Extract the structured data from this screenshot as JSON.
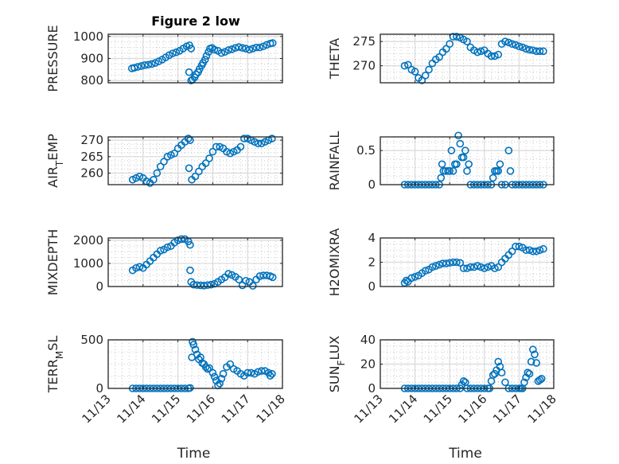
{
  "figure": {
    "title": "Figure 2 low",
    "marker_color": "#0072BD",
    "grid_color": "#d9d9d9"
  },
  "chart_data": [
    {
      "type": "scatter",
      "title": "Figure 2 low",
      "ylabel": "PRESSURE",
      "ylabel_parts": [
        "PRESSURE"
      ],
      "xlabel": "",
      "xlim": [
        0,
        5
      ],
      "ylim": [
        790,
        1010
      ],
      "yticks": [
        800,
        900,
        1000
      ],
      "xticks": [
        "11/13",
        "11/14",
        "11/15",
        "11/16",
        "11/17",
        "11/18"
      ],
      "show_xticklabels": false,
      "grid": true,
      "x": [
        0.68,
        0.75,
        0.85,
        0.95,
        1.05,
        1.15,
        1.25,
        1.35,
        1.45,
        1.55,
        1.65,
        1.75,
        1.85,
        1.95,
        2.05,
        2.15,
        2.25,
        2.33,
        2.38,
        2.32,
        2.38,
        2.42,
        2.48,
        2.52,
        2.58,
        2.62,
        2.68,
        2.72,
        2.78,
        2.82,
        2.88,
        2.92,
        2.98,
        3.05,
        3.15,
        3.25,
        3.35,
        3.45,
        3.55,
        3.65,
        3.75,
        3.85,
        3.95,
        4.05,
        4.15,
        4.25,
        4.35,
        4.45,
        4.55,
        4.65,
        4.72
      ],
      "y": [
        855,
        858,
        862,
        866,
        870,
        872,
        875,
        880,
        887,
        895,
        905,
        915,
        923,
        928,
        935,
        945,
        955,
        960,
        945,
        838,
        800,
        805,
        815,
        828,
        838,
        852,
        868,
        880,
        895,
        912,
        930,
        945,
        948,
        940,
        935,
        925,
        930,
        938,
        942,
        948,
        952,
        948,
        945,
        940,
        945,
        950,
        950,
        955,
        962,
        968,
        970
      ]
    },
    {
      "type": "scatter",
      "ylabel": "THETA",
      "xlabel": "",
      "xlim": [
        0,
        5
      ],
      "ylim": [
        266.5,
        276.5
      ],
      "yticks": [
        270,
        275
      ],
      "xticks": [
        "11/13",
        "11/14",
        "11/15",
        "11/16",
        "11/17",
        "11/18"
      ],
      "show_xticklabels": false,
      "grid": true,
      "x": [
        0.7,
        0.8,
        0.9,
        1.0,
        1.1,
        1.2,
        1.3,
        1.4,
        1.5,
        1.6,
        1.7,
        1.8,
        1.9,
        2.0,
        2.1,
        2.2,
        2.3,
        2.4,
        2.5,
        2.6,
        2.7,
        2.8,
        2.9,
        3.0,
        3.1,
        3.2,
        3.3,
        3.4,
        3.5,
        3.6,
        3.7,
        3.8,
        3.9,
        4.0,
        4.1,
        4.2,
        4.3,
        4.4,
        4.5,
        4.6,
        4.7
      ],
      "y": [
        270.0,
        270.2,
        269.2,
        268.8,
        267.5,
        267.0,
        268.0,
        269.2,
        270.5,
        271.3,
        271.8,
        272.8,
        273.5,
        274.5,
        276.0,
        276.0,
        275.8,
        275.4,
        275.0,
        273.8,
        273.2,
        272.8,
        273.0,
        273.2,
        272.5,
        272.0,
        272.0,
        272.3,
        274.5,
        275.0,
        274.8,
        274.5,
        274.3,
        274.0,
        273.8,
        273.5,
        273.3,
        273.2,
        273.0,
        273.0,
        273.0
      ]
    },
    {
      "type": "scatter",
      "ylabel": "AIR_TEMP",
      "ylabel_parts": [
        "AIR",
        "T",
        "EMP"
      ],
      "xlabel": "",
      "xlim": [
        0,
        5
      ],
      "ylim": [
        256.5,
        271
      ],
      "yticks": [
        260,
        265,
        270
      ],
      "xticks": [
        "11/13",
        "11/14",
        "11/15",
        "11/16",
        "11/17",
        "11/18"
      ],
      "show_xticklabels": false,
      "grid": true,
      "x": [
        0.7,
        0.8,
        0.9,
        1.0,
        1.1,
        1.2,
        1.3,
        1.4,
        1.5,
        1.6,
        1.7,
        1.8,
        1.9,
        2.0,
        2.1,
        2.2,
        2.3,
        2.35,
        2.32,
        2.4,
        2.5,
        2.6,
        2.7,
        2.8,
        2.9,
        3.0,
        3.1,
        3.2,
        3.3,
        3.4,
        3.5,
        3.6,
        3.7,
        3.8,
        3.9,
        4.0,
        4.1,
        4.2,
        4.3,
        4.4,
        4.5,
        4.6,
        4.7
      ],
      "y": [
        258.0,
        258.5,
        259.0,
        258.5,
        257.5,
        257.0,
        258.0,
        260.0,
        262.0,
        263.5,
        265.0,
        265.5,
        266.0,
        267.5,
        268.5,
        269.5,
        270.5,
        270.0,
        261.5,
        258.0,
        259.0,
        260.5,
        262.0,
        263.0,
        264.5,
        266.5,
        268.0,
        268.0,
        267.5,
        266.5,
        266.0,
        266.5,
        267.0,
        268.0,
        270.5,
        270.5,
        270.0,
        269.5,
        269.0,
        269.0,
        269.5,
        270.0,
        270.5
      ]
    },
    {
      "type": "scatter",
      "ylabel": "RAINFALL",
      "xlabel": "",
      "xlim": [
        0,
        5
      ],
      "ylim": [
        0,
        0.7
      ],
      "yticks": [
        0,
        0.5
      ],
      "xticks": [
        "11/13",
        "11/14",
        "11/15",
        "11/16",
        "11/17",
        "11/18"
      ],
      "show_xticklabels": false,
      "grid": true,
      "x": [
        0.7,
        0.8,
        0.9,
        1.0,
        1.1,
        1.2,
        1.3,
        1.4,
        1.5,
        1.6,
        1.7,
        1.75,
        1.78,
        1.82,
        1.88,
        1.95,
        2.0,
        2.05,
        2.1,
        2.15,
        2.2,
        2.25,
        2.3,
        2.35,
        2.4,
        2.45,
        2.5,
        2.55,
        2.6,
        2.7,
        2.8,
        2.9,
        3.0,
        3.1,
        3.2,
        3.25,
        3.3,
        3.35,
        3.4,
        3.45,
        3.5,
        3.6,
        3.7,
        3.75,
        3.8,
        3.9,
        4.0,
        4.1,
        4.2,
        4.3,
        4.4,
        4.5,
        4.6,
        4.7
      ],
      "y": [
        0,
        0,
        0,
        0,
        0,
        0,
        0,
        0,
        0,
        0,
        0,
        0.1,
        0.3,
        0.2,
        0.2,
        0.2,
        0.2,
        0.5,
        0.2,
        0.3,
        0.3,
        0.72,
        0.6,
        0.4,
        0.4,
        0.5,
        0.2,
        0.3,
        0,
        0,
        0,
        0,
        0,
        0,
        0,
        0.1,
        0.2,
        0.2,
        0.2,
        0.3,
        0,
        0,
        0.5,
        0.2,
        0,
        0,
        0,
        0,
        0,
        0,
        0,
        0,
        0,
        0
      ]
    },
    {
      "type": "scatter",
      "ylabel": "MIXDEPTH",
      "xlabel": "",
      "xlim": [
        0,
        5
      ],
      "ylim": [
        0,
        2100
      ],
      "yticks": [
        0,
        1000,
        2000
      ],
      "xticks": [
        "11/13",
        "11/14",
        "11/15",
        "11/16",
        "11/17",
        "11/18"
      ],
      "show_xticklabels": false,
      "grid": true,
      "x": [
        0.7,
        0.8,
        0.9,
        1.0,
        1.1,
        1.2,
        1.3,
        1.4,
        1.5,
        1.6,
        1.7,
        1.8,
        1.9,
        2.0,
        2.1,
        2.2,
        2.3,
        2.35,
        2.35,
        2.38,
        2.45,
        2.55,
        2.65,
        2.75,
        2.85,
        2.95,
        3.05,
        3.15,
        3.25,
        3.35,
        3.45,
        3.55,
        3.65,
        3.75,
        3.85,
        3.95,
        4.05,
        4.15,
        4.25,
        4.35,
        4.45,
        4.55,
        4.65,
        4.72
      ],
      "y": [
        700,
        800,
        850,
        800,
        950,
        1100,
        1250,
        1400,
        1550,
        1600,
        1700,
        1750,
        1900,
        2000,
        2050,
        2050,
        1950,
        1800,
        700,
        200,
        80,
        60,
        50,
        40,
        60,
        80,
        120,
        200,
        300,
        400,
        550,
        500,
        420,
        300,
        50,
        250,
        200,
        30,
        300,
        450,
        480,
        480,
        450,
        400
      ]
    },
    {
      "type": "scatter",
      "ylabel": "H2OMIXRA",
      "xlabel": "",
      "xlim": [
        0,
        5
      ],
      "ylim": [
        0,
        4
      ],
      "yticks": [
        0,
        2,
        4
      ],
      "xticks": [
        "11/13",
        "11/14",
        "11/15",
        "11/16",
        "11/17",
        "11/18"
      ],
      "show_xticklabels": false,
      "grid": true,
      "x": [
        0.7,
        0.75,
        0.8,
        0.9,
        1.0,
        1.1,
        1.2,
        1.3,
        1.4,
        1.5,
        1.6,
        1.7,
        1.8,
        1.9,
        2.0,
        2.1,
        2.2,
        2.3,
        2.4,
        2.5,
        2.6,
        2.7,
        2.8,
        2.9,
        3.0,
        3.1,
        3.2,
        3.3,
        3.4,
        3.5,
        3.6,
        3.7,
        3.8,
        3.9,
        4.0,
        4.1,
        4.2,
        4.3,
        4.4,
        4.5,
        4.6,
        4.7
      ],
      "y": [
        0.3,
        0.5,
        0.4,
        0.7,
        0.8,
        0.9,
        1.1,
        1.3,
        1.4,
        1.6,
        1.7,
        1.8,
        1.9,
        1.9,
        1.95,
        2.0,
        2.0,
        1.95,
        1.5,
        1.5,
        1.6,
        1.6,
        1.7,
        1.6,
        1.5,
        1.6,
        1.7,
        1.5,
        1.6,
        2.0,
        2.3,
        2.6,
        2.9,
        3.3,
        3.3,
        3.2,
        3.0,
        3.0,
        2.9,
        2.9,
        3.0,
        3.1
      ]
    },
    {
      "type": "scatter",
      "ylabel": "TERR_MSL",
      "ylabel_parts": [
        "TERR",
        "M",
        "SL"
      ],
      "xlabel": "Time",
      "xlim": [
        0,
        5
      ],
      "ylim": [
        0,
        500
      ],
      "yticks": [
        0,
        500
      ],
      "xticks": [
        "11/13",
        "11/14",
        "11/15",
        "11/16",
        "11/17",
        "11/18"
      ],
      "show_xticklabels": true,
      "grid": true,
      "x": [
        0.7,
        0.8,
        0.9,
        1.0,
        1.1,
        1.2,
        1.3,
        1.4,
        1.5,
        1.6,
        1.7,
        1.8,
        1.9,
        2.0,
        2.1,
        2.2,
        2.3,
        2.35,
        2.4,
        2.42,
        2.45,
        2.5,
        2.55,
        2.6,
        2.65,
        2.7,
        2.75,
        2.8,
        2.85,
        2.9,
        3.0,
        3.05,
        3.1,
        3.15,
        3.2,
        3.25,
        3.3,
        3.4,
        3.5,
        3.6,
        3.7,
        3.8,
        3.9,
        4.0,
        4.1,
        4.2,
        4.3,
        4.4,
        4.5,
        4.6,
        4.65,
        4.7
      ],
      "y": [
        0,
        0,
        0,
        0,
        0,
        0,
        0,
        0,
        0,
        0,
        0,
        0,
        0,
        0,
        0,
        0,
        0,
        5,
        320,
        480,
        450,
        400,
        350,
        300,
        320,
        260,
        250,
        220,
        200,
        210,
        160,
        120,
        80,
        30,
        50,
        100,
        150,
        220,
        250,
        200,
        180,
        150,
        130,
        160,
        160,
        150,
        170,
        180,
        180,
        160,
        130,
        150
      ]
    },
    {
      "type": "scatter",
      "ylabel": "SUN_FLUX",
      "ylabel_parts": [
        "SUN",
        "F",
        "LUX"
      ],
      "xlabel": "Time",
      "xlim": [
        0,
        5
      ],
      "ylim": [
        0,
        40
      ],
      "yticks": [
        0,
        20,
        40
      ],
      "xticks": [
        "11/13",
        "11/14",
        "11/15",
        "11/16",
        "11/17",
        "11/18"
      ],
      "show_xticklabels": true,
      "grid": true,
      "x": [
        0.7,
        0.8,
        0.9,
        1.0,
        1.1,
        1.2,
        1.3,
        1.4,
        1.5,
        1.6,
        1.7,
        1.8,
        1.9,
        2.0,
        2.1,
        2.2,
        2.3,
        2.35,
        2.4,
        2.45,
        2.5,
        2.6,
        2.7,
        2.8,
        2.9,
        3.0,
        3.1,
        3.15,
        3.2,
        3.25,
        3.3,
        3.35,
        3.4,
        3.45,
        3.5,
        3.6,
        3.7,
        3.8,
        3.9,
        4.0,
        4.05,
        4.1,
        4.15,
        4.2,
        4.25,
        4.3,
        4.35,
        4.4,
        4.45,
        4.5,
        4.55,
        4.6,
        4.65
      ],
      "y": [
        0,
        0,
        0,
        0,
        0,
        0,
        0,
        0,
        0,
        0,
        0,
        0,
        0,
        0,
        0,
        0,
        0,
        3,
        6,
        5,
        0,
        0,
        0,
        0,
        0,
        0,
        0,
        0,
        6,
        11,
        12,
        15,
        22,
        18,
        13,
        5,
        0,
        0,
        0,
        0,
        0,
        0,
        5,
        9,
        13,
        12,
        22,
        32,
        28,
        21,
        6,
        7,
        8
      ]
    }
  ]
}
